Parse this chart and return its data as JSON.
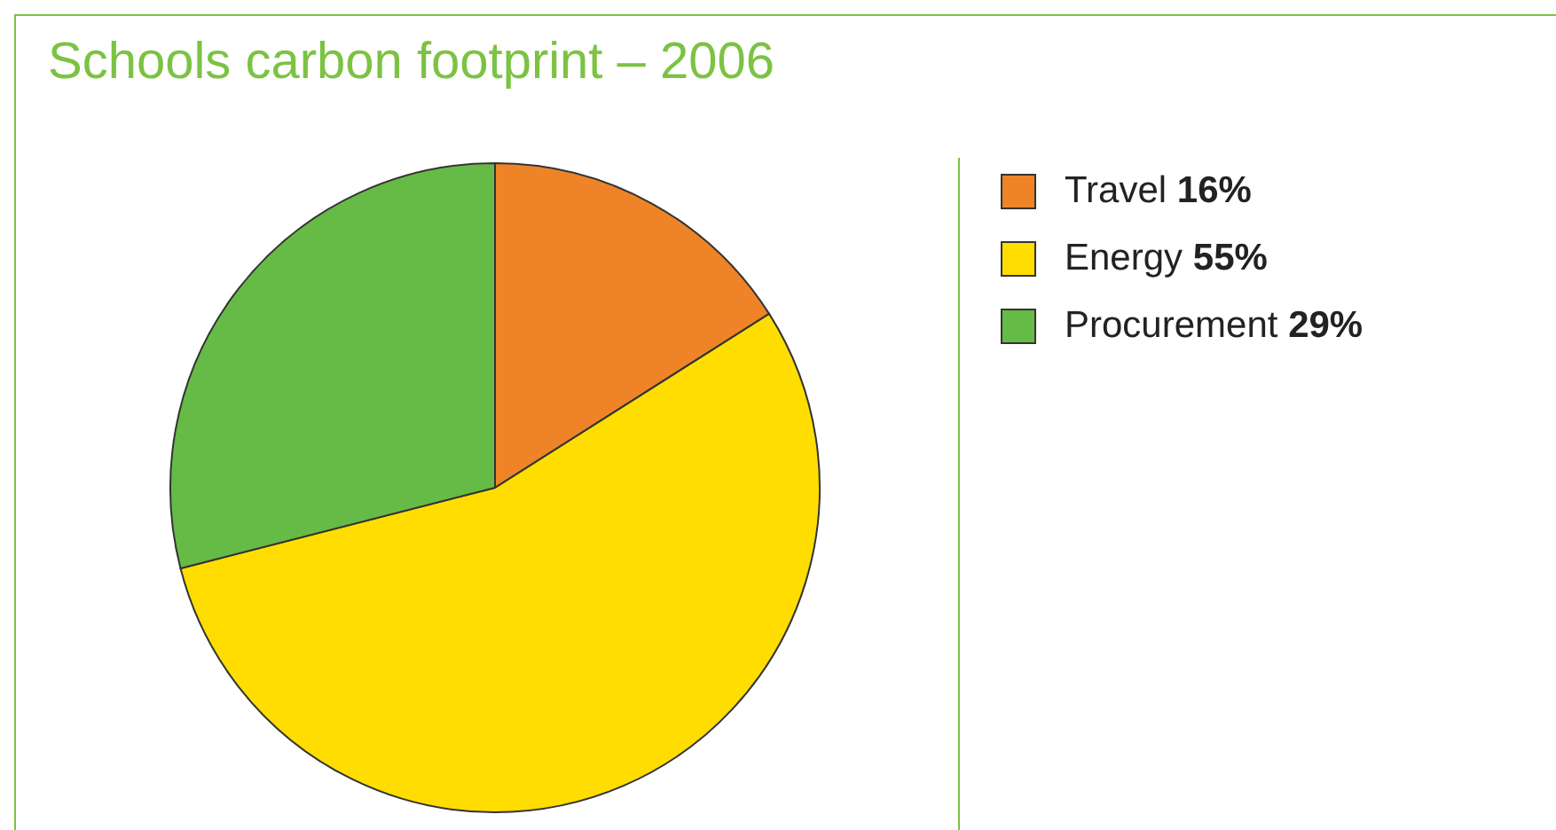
{
  "chart_data": {
    "type": "pie",
    "title": "Schools carbon footprint – 2006",
    "categories": [
      "Travel",
      "Energy",
      "Procurement"
    ],
    "values": [
      16,
      55,
      29
    ],
    "value_labels": [
      "16%",
      "55%",
      "29%"
    ],
    "colors": [
      "#ee8427",
      "#ffdd00",
      "#66bb46"
    ],
    "legend": "top right"
  }
}
